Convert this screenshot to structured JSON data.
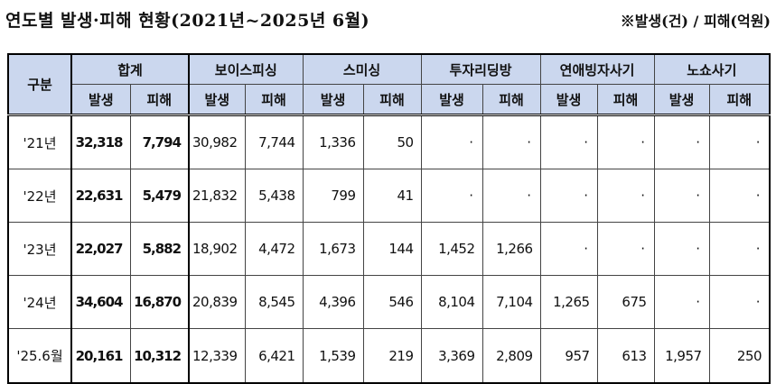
{
  "title": "연도별 발생·피해 현황(2021년~2025년 6월)",
  "note": "※발생(건) / 피해(억원)",
  "table": {
    "row_header": "구분",
    "groups": [
      "합계",
      "보이스피싱",
      "스미싱",
      "투자리딩방",
      "연애빙자사기",
      "노쇼사기"
    ],
    "subheaders": [
      "발생",
      "피해"
    ],
    "rows": [
      {
        "year": "'21년",
        "cells": [
          "32,318",
          "7,794",
          "30,982",
          "7,744",
          "1,336",
          "50",
          "·",
          "·",
          "·",
          "·",
          "·",
          "·"
        ]
      },
      {
        "year": "'22년",
        "cells": [
          "22,631",
          "5,479",
          "21,832",
          "5,438",
          "799",
          "41",
          "·",
          "·",
          "·",
          "·",
          "·",
          "·"
        ]
      },
      {
        "year": "'23년",
        "cells": [
          "22,027",
          "5,882",
          "18,902",
          "4,472",
          "1,673",
          "144",
          "1,452",
          "1,266",
          "·",
          "·",
          "·",
          "·"
        ]
      },
      {
        "year": "'24년",
        "cells": [
          "34,604",
          "16,870",
          "20,839",
          "8,545",
          "4,396",
          "546",
          "8,104",
          "7,104",
          "1,265",
          "675",
          "·",
          "·"
        ]
      },
      {
        "year": "'25.6월",
        "cells": [
          "20,161",
          "10,312",
          "12,339",
          "6,421",
          "1,539",
          "219",
          "3,369",
          "2,809",
          "957",
          "613",
          "1,957",
          "250"
        ]
      }
    ]
  }
}
